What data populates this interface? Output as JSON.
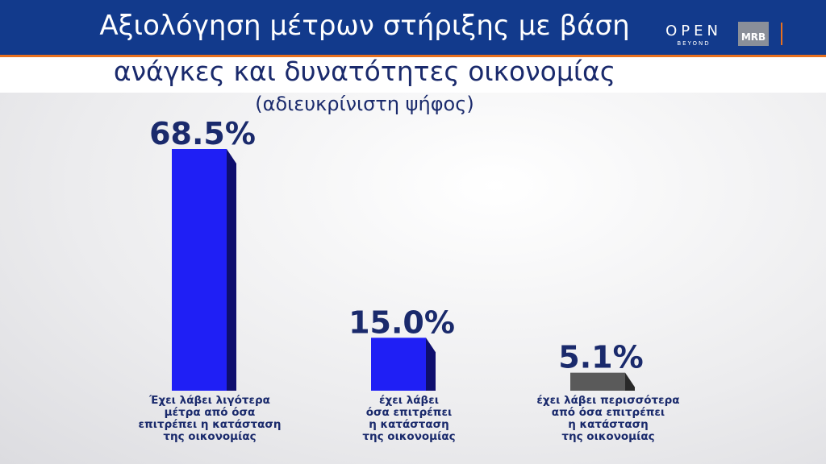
{
  "chart_data": {
    "type": "bar",
    "title": "Αξιολόγηση μέτρων στήριξης με βάση",
    "title_line2": "ανάγκες και δυνατότητες οικονομίας",
    "subtitle": "(αδιευκρίνιστη ψήφος)",
    "categories": [
      "Έχει λάβει λιγότερα\nμέτρα από όσα\nεπιτρέπει η κατάσταση\nτης οικονομίας",
      "έχει λάβει\nόσα επιτρέπει\nη κατάσταση\nτης οικονομίας",
      "έχει λάβει περισσότερα\nαπό όσα επιτρέπει\nη κατάσταση\nτης οικονομίας"
    ],
    "values": [
      68.5,
      15.0,
      5.1
    ],
    "value_labels": [
      "68.5%",
      "15.0%",
      "5.1%"
    ],
    "colors": [
      "#1f1ff5",
      "#1f1ff5",
      "#5a5a5a"
    ]
  },
  "logos": {
    "channel": "OPEN",
    "channel_tagline": "BEYOND",
    "pollster": "MRB"
  }
}
